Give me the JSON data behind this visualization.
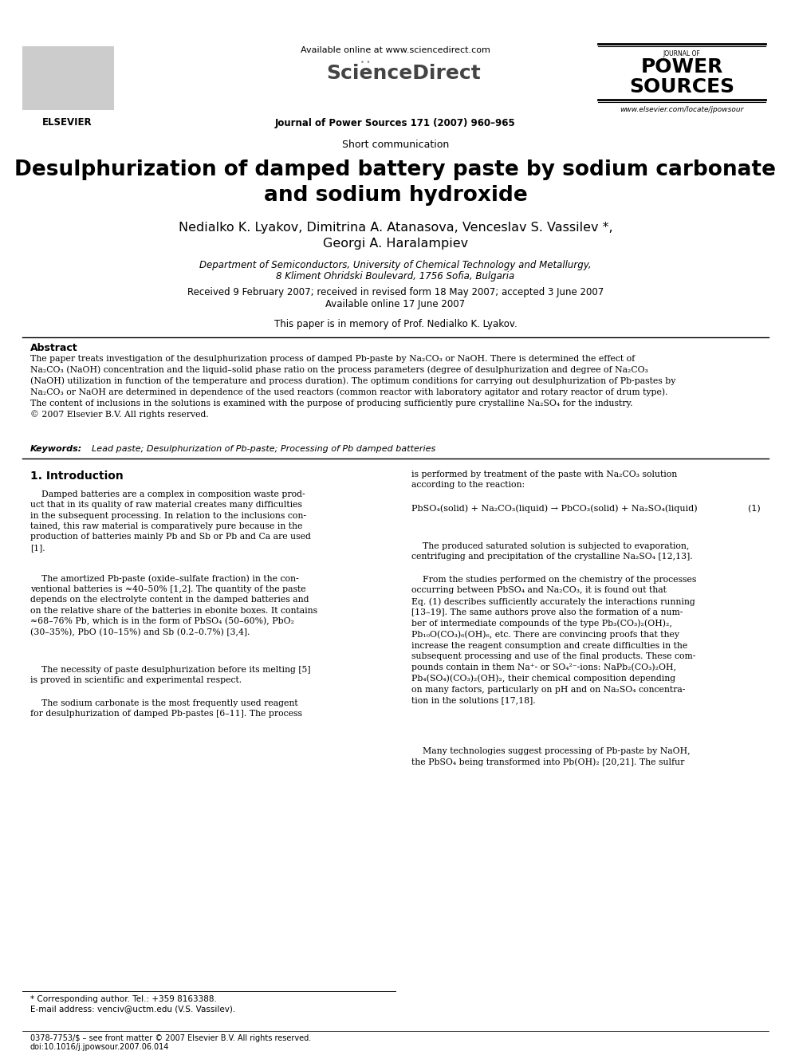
{
  "bg_color": "#ffffff",
  "page_width": 9.92,
  "page_height": 13.23,
  "dpi": 100,
  "available_online": "Available online at www.sciencedirect.com",
  "sciencedirect": "ScienceDirect",
  "journal_line": "Journal of Power Sources 171 (2007) 960–965",
  "website": "www.elsevier.com/locate/jpowsour",
  "section_label": "Short communication",
  "title_line1": "Desulphurization of damped battery paste by sodium carbonate",
  "title_line2": "and sodium hydroxide",
  "authors": "Nedialko K. Lyakov, Dimitrina A. Atanasova, Venceslav S. Vassilev *,",
  "authors2": "Georgi A. Haralampiev",
  "affil1": "Department of Semiconductors, University of Chemical Technology and Metallurgy,",
  "affil2": "8 Kliment Ohridski Boulevard, 1756 Sofia, Bulgaria",
  "received": "Received 9 February 2007; received in revised form 18 May 2007; accepted 3 June 2007",
  "available": "Available online 17 June 2007",
  "dedication": "This paper is in memory of Prof. Nedialko K. Lyakov.",
  "abstract_title": "Abstract",
  "abstract_text": "The paper treats investigation of the desulphurization process of damped Pb-paste by Na₂CO₃ or NaOH. There is determined the effect of\nNa₂CO₃ (NaOH) concentration and the liquid–solid phase ratio on the process parameters (degree of desulphurization and degree of Na₂CO₃\n(NaOH) utilization in function of the temperature and process duration). The optimum conditions for carrying out desulphurization of Pb-pastes by\nNa₂CO₃ or NaOH are determined in dependence of the used reactors (common reactor with laboratory agitator and rotary reactor of drum type).\nThe content of inclusions in the solutions is examined with the purpose of producing sufficiently pure crystalline Na₂SO₄ for the industry.\n© 2007 Elsevier B.V. All rights reserved.",
  "keywords_label": "Keywords:",
  "keywords_text": "Lead paste; Desulphurization of Pb-paste; Processing of Pb damped batteries",
  "intro_title": "1. Introduction",
  "intro_col1_p1": "    Damped batteries are a complex in composition waste prod-\nuct that in its quality of raw material creates many difficulties\nin the subsequent processing. In relation to the inclusions con-\ntained, this raw material is comparatively pure because in the\nproduction of batteries mainly Pb and Sb or Pb and Ca are used\n[1].",
  "intro_col1_p2": "    The amortized Pb-paste (oxide–sulfate fraction) in the con-\nventional batteries is ≈40–50% [1,2]. The quantity of the paste\ndepends on the electrolyte content in the damped batteries and\non the relative share of the batteries in ebonite boxes. It contains\n≈68–76% Pb, which is in the form of PbSO₄ (50–60%), PbO₂\n(30–35%), PbO (10–15%) and Sb (0.2–0.7%) [3,4].",
  "intro_col1_p3": "    The necessity of paste desulphurization before its melting [5]\nis proved in scientific and experimental respect.",
  "intro_col1_p4": "    The sodium carbonate is the most frequently used reagent\nfor desulphurization of damped Pb-pastes [6–11]. The process",
  "intro_col2_p1": "is performed by treatment of the paste with Na₂CO₃ solution\naccording to the reaction:",
  "reaction": "PbSO₄(solid) + Na₂CO₃(liquid) → PbCO₃(solid) + Na₂SO₄(liquid)",
  "reaction_num": "(1)",
  "intro_col2_p2": "    The produced saturated solution is subjected to evaporation,\ncentrifuging and precipitation of the crystalline Na₂SO₄ [12,13].",
  "intro_col2_p3": "    From the studies performed on the chemistry of the processes\noccurring between PbSO₄ and Na₂CO₃, it is found out that\nEq. (1) describes sufficiently accurately the interactions running\n[13–19]. The same authors prove also the formation of a num-\nber of intermediate compounds of the type Pb₃(CO₃)₂(OH)₂,\nPb₁₀O(CO₃)₆(OH)₆, etc. There are convincing proofs that they\nincrease the reagent consumption and create difficulties in the\nsubsequent processing and use of the final products. These com-\npounds contain in them Na⁺- or SO₄²⁻-ions: NaPb₂(CO₃)₂OH,\nPb₄(SO₄)(CO₃)₂(OH)₂, their chemical composition depending\non many factors, particularly on pH and on Na₂SO₄ concentra-\ntion in the solutions [17,18].",
  "intro_col2_p4": "    Many technologies suggest processing of Pb-paste by NaOH,\nthe PbSO₄ being transformed into Pb(OH)₂ [20,21]. The sulfur",
  "footnote_star": "* Corresponding author. Tel.: +359 8163388.",
  "footnote_email": "E-mail address: venciv@uctm.edu (V.S. Vassilev).",
  "footer_issn": "0378-7753/$ – see front matter © 2007 Elsevier B.V. All rights reserved.",
  "footer_doi": "doi:10.1016/j.jpowsour.2007.06.014"
}
